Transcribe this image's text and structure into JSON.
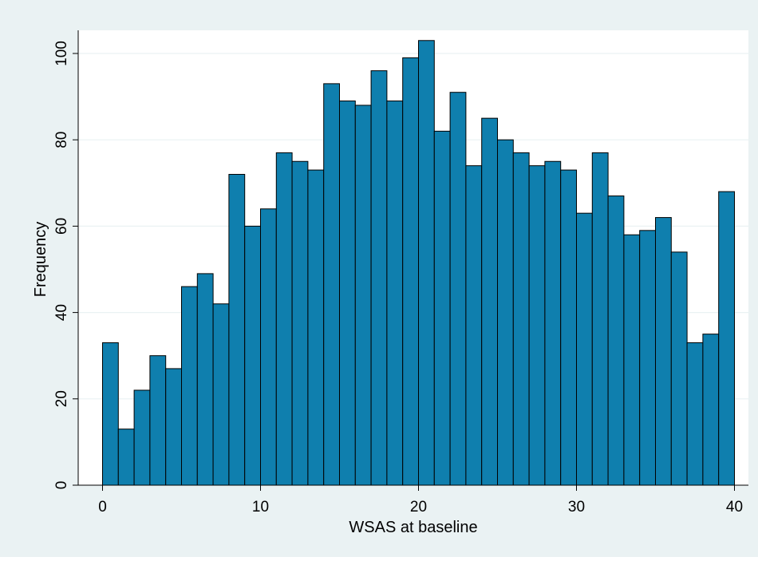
{
  "chart_data": {
    "type": "bar",
    "subtype": "histogram",
    "xlabel": "WSAS at baseline",
    "ylabel": "Frequency",
    "xlim": [
      0,
      40
    ],
    "ylim": [
      0,
      100
    ],
    "xticks": [
      "0",
      "10",
      "20",
      "30",
      "40"
    ],
    "yticks": [
      "0",
      "20",
      "40",
      "60",
      "80",
      "100"
    ],
    "grid": "horizontal",
    "bin_width": 1,
    "bins_start": [
      0,
      1,
      2,
      3,
      4,
      5,
      6,
      7,
      8,
      9,
      10,
      11,
      12,
      13,
      14,
      15,
      16,
      17,
      18,
      19,
      20,
      21,
      22,
      23,
      24,
      25,
      26,
      27,
      28,
      29,
      30,
      31,
      32,
      33,
      34,
      35,
      36,
      37,
      38,
      39
    ],
    "values": [
      33,
      13,
      22,
      30,
      27,
      46,
      49,
      42,
      72,
      60,
      64,
      77,
      75,
      73,
      93,
      89,
      88,
      96,
      89,
      99,
      103,
      82,
      91,
      74,
      85,
      80,
      77,
      74,
      75,
      73,
      63,
      77,
      67,
      58,
      59,
      62,
      54,
      33,
      35,
      68
    ],
    "colors": {
      "bar_fill": "#0f7fae",
      "bar_edge": "#000000",
      "outer_background": "#eaf2f3",
      "plot_background": "#ffffff",
      "grid": "#eaf2f3"
    }
  }
}
